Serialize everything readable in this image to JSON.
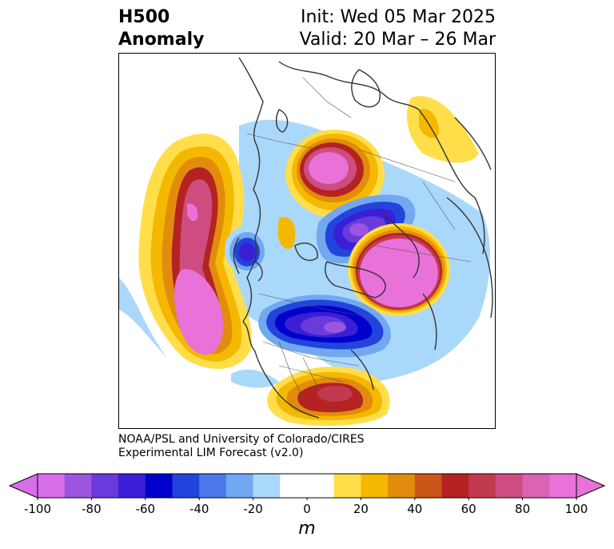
{
  "title": {
    "left_line1": "H500",
    "left_line2": "Anomaly",
    "right_line1": "Init: Wed 05 Mar 2025",
    "right_line2": "Valid: 20 Mar – 26 Mar"
  },
  "credit": {
    "line1": "NOAA/PSL and University of Colorado/CIRES",
    "line2": "Experimental LIM Forecast (v2.0)"
  },
  "colorbar": {
    "unit": "m",
    "ticks": [
      "-100",
      "-80",
      "-60",
      "-40",
      "-20",
      "0",
      "20",
      "40",
      "60",
      "80",
      "100"
    ],
    "colors": [
      "#d66ee8",
      "#9b55e0",
      "#6a3adc",
      "#3a1fd6",
      "#0000cc",
      "#2244dd",
      "#4a78e8",
      "#72a8f0",
      "#aad8fa",
      "#ffffff",
      "#ffffff",
      "#ffde4a",
      "#f5b800",
      "#e28c0e",
      "#cc5518",
      "#b42222",
      "#c23a4e",
      "#cf4c80",
      "#db62b4",
      "#e872d8"
    ]
  },
  "colors": {
    "coast": "#333333"
  }
}
